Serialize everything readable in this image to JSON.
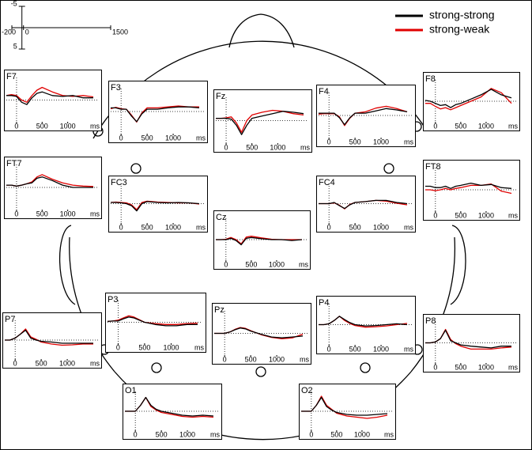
{
  "chart_data": {
    "type": "line",
    "scale": {
      "yticks": [
        -5,
        5
      ],
      "xticks": [
        -200,
        0,
        1500
      ]
    },
    "legend": [
      {
        "name": "strong-strong",
        "color": "#000000"
      },
      {
        "name": "strong-weak",
        "color": "#e00000"
      }
    ],
    "x": [
      -200,
      -100,
      0,
      100,
      200,
      300,
      400,
      500,
      700,
      900,
      1100,
      1300,
      1500
    ],
    "xlim": [
      -200,
      1500
    ],
    "ylim": [
      -5,
      5
    ],
    "y_reversed": true,
    "xticks": [
      0,
      500,
      1000
    ],
    "x_unit": "ms",
    "panels": [
      {
        "title": "F7",
        "series": [
          {
            "values": [
              -1,
              -1,
              -0.8,
              0.5,
              1,
              -0.5,
              -1.5,
              -1.8,
              -1,
              -0.8,
              -1,
              -0.5,
              -0.5
            ]
          },
          {
            "values": [
              -1,
              -1.2,
              -1,
              0,
              0.5,
              -1,
              -2.2,
              -2.8,
              -1.8,
              -1,
              -0.8,
              -1,
              -0.7
            ]
          }
        ]
      },
      {
        "title": "F3",
        "series": [
          {
            "values": [
              -0.8,
              -0.8,
              -0.5,
              -0.5,
              1,
              2.2,
              0.5,
              -0.5,
              -0.5,
              -0.8,
              -1,
              -1,
              -0.8
            ]
          },
          {
            "values": [
              -0.6,
              -0.9,
              -0.6,
              -0.5,
              0.8,
              2.3,
              0.3,
              -0.8,
              -0.8,
              -1,
              -1.2,
              -1,
              -1
            ]
          }
        ]
      },
      {
        "title": "Fz",
        "series": [
          {
            "values": [
              -0.5,
              -0.5,
              -0.5,
              -0.3,
              1,
              3,
              1,
              -0.5,
              -1,
              -1.5,
              -2,
              -1.8,
              -1.5
            ]
          },
          {
            "values": [
              -0.5,
              -0.5,
              -0.6,
              -0.8,
              0.5,
              2.5,
              0,
              -1.2,
              -1.8,
              -2.2,
              -2,
              -1.5,
              -1.2
            ]
          }
        ]
      },
      {
        "title": "F4",
        "series": [
          {
            "values": [
              -0.5,
              -0.5,
              -0.5,
              -0.5,
              0.5,
              2,
              0.5,
              -0.5,
              -0.5,
              -1,
              -1.5,
              -1.2,
              -0.8
            ]
          },
          {
            "values": [
              -0.3,
              -0.4,
              -0.4,
              -0.4,
              0.3,
              2.2,
              0.6,
              -0.5,
              -0.8,
              -1.6,
              -2,
              -1.5,
              -0.8
            ]
          }
        ]
      },
      {
        "title": "F8",
        "series": [
          {
            "values": [
              -0.2,
              0,
              0.5,
              1,
              0.8,
              1.5,
              0.8,
              0.5,
              -0.5,
              -1.5,
              -2.8,
              -1.5,
              -0.8
            ]
          },
          {
            "values": [
              0.5,
              0.5,
              1.2,
              1.8,
              1.5,
              2,
              1.5,
              1,
              0,
              -1,
              -3,
              -2,
              0.5
            ]
          }
        ]
      },
      {
        "title": "FT7",
        "series": [
          {
            "values": [
              -0.5,
              -0.5,
              -0.3,
              -0.5,
              -0.8,
              -1,
              -2,
              -2.3,
              -1.5,
              -0.5,
              0,
              0,
              0
            ]
          },
          {
            "values": [
              -0.5,
              -0.5,
              -0.3,
              -0.5,
              -0.8,
              -1.2,
              -2.3,
              -2.8,
              -1.8,
              -1,
              -0.5,
              -0.3,
              -0.2
            ]
          }
        ]
      },
      {
        "title": "FC3",
        "series": [
          {
            "values": [
              -0.3,
              -0.3,
              -0.2,
              0,
              0.5,
              1.8,
              0,
              -0.5,
              -0.3,
              -0.2,
              -0.3,
              -0.2,
              0
            ]
          },
          {
            "values": [
              -0.3,
              -0.4,
              -0.3,
              -0.2,
              0.3,
              1.5,
              -0.3,
              -0.6,
              -0.4,
              -0.3,
              -0.2,
              -0.2,
              0.1
            ]
          }
        ]
      },
      {
        "title": "Cz",
        "series": [
          {
            "values": [
              0,
              0,
              0,
              -0.3,
              0.2,
              1.2,
              -0.3,
              -0.5,
              -0.2,
              0,
              0,
              0.2,
              0
            ]
          },
          {
            "values": [
              0,
              0,
              -0.1,
              -0.5,
              0,
              1,
              -0.6,
              -0.8,
              -0.4,
              -0.1,
              0,
              0,
              0
            ]
          }
        ]
      },
      {
        "title": "FC4",
        "series": [
          {
            "values": [
              0,
              0,
              0,
              -0.3,
              0.5,
              1.2,
              0.3,
              -0.3,
              -0.5,
              -0.8,
              -0.8,
              -0.3,
              0
            ]
          },
          {
            "values": [
              0,
              0,
              0,
              -0.2,
              0.4,
              1.3,
              0.2,
              -0.3,
              -0.5,
              -0.8,
              -0.6,
              -0.1,
              0.3
            ]
          }
        ]
      },
      {
        "title": "FT8",
        "series": [
          {
            "values": [
              -0.8,
              -0.8,
              -0.5,
              -0.5,
              -0.8,
              -0.3,
              -0.8,
              -1,
              -1.5,
              -1,
              -1.2,
              -0.5,
              -0.3
            ]
          },
          {
            "values": [
              0,
              0,
              0.2,
              0,
              -0.3,
              0,
              -0.3,
              -0.5,
              -1,
              -1,
              -1.3,
              0.3,
              0.8
            ]
          }
        ]
      },
      {
        "title": "P3",
        "series": [
          {
            "values": [
              -0.2,
              -0.3,
              -0.3,
              -0.8,
              -1.2,
              -1,
              -0.5,
              0,
              0.5,
              0.8,
              0.8,
              0.5,
              0.5
            ]
          },
          {
            "values": [
              -0.2,
              -0.3,
              -0.5,
              -1,
              -1.5,
              -1.2,
              -0.6,
              0,
              0.3,
              0.5,
              0.5,
              0.3,
              0.2
            ]
          }
        ]
      },
      {
        "title": "Pz",
        "series": [
          {
            "values": [
              0,
              0,
              0,
              -0.3,
              -0.8,
              -1.2,
              -1,
              -0.5,
              0.2,
              0.8,
              1,
              0.8,
              0.6
            ]
          },
          {
            "values": [
              0,
              0,
              0,
              -0.3,
              -0.9,
              -1.3,
              -1.1,
              -0.6,
              0.3,
              0.9,
              1.2,
              1,
              0.2
            ]
          }
        ]
      },
      {
        "title": "P4",
        "series": [
          {
            "values": [
              0,
              0,
              -0.2,
              -1,
              -2,
              -1.2,
              -0.5,
              0,
              0.3,
              0.2,
              0,
              -0.2,
              0
            ]
          },
          {
            "values": [
              0,
              0,
              -0.2,
              -1,
              -2,
              -1,
              -0.3,
              0.2,
              0.6,
              0.5,
              0.3,
              0,
              -0.3
            ]
          }
        ]
      },
      {
        "title": "P7",
        "series": [
          {
            "values": [
              0,
              0,
              -0.5,
              -1.5,
              -2.5,
              -0.5,
              0,
              0.3,
              0.5,
              0.8,
              0.8,
              0.8,
              0.8
            ]
          },
          {
            "values": [
              0,
              0,
              -0.5,
              -1.5,
              -2.8,
              -0.8,
              -0.2,
              0.5,
              1,
              1.3,
              1.2,
              1,
              1
            ]
          }
        ]
      },
      {
        "title": "P8",
        "series": [
          {
            "values": [
              0,
              0,
              -0.2,
              -1,
              -3,
              -0.5,
              0,
              0.5,
              0.8,
              1,
              1.2,
              0.8,
              0.8
            ]
          },
          {
            "values": [
              0,
              0,
              -0.2,
              -1,
              -3.2,
              -0.8,
              0.2,
              0.8,
              1.5,
              1.5,
              1.5,
              1.2,
              1
            ]
          }
        ]
      },
      {
        "title": "O1",
        "series": [
          {
            "values": [
              0,
              0,
              0,
              -1.5,
              -3.5,
              -1.5,
              -0.5,
              0,
              0.5,
              1,
              1.2,
              1,
              1.2
            ]
          },
          {
            "values": [
              0,
              0,
              0,
              -1.5,
              -3.5,
              -1.2,
              -0.3,
              0.3,
              0.8,
              1.3,
              1.5,
              1.3,
              1.5
            ]
          }
        ]
      },
      {
        "title": "O2",
        "series": [
          {
            "values": [
              0,
              0,
              0,
              -1.5,
              -3.5,
              -1.2,
              -0.3,
              0.3,
              0.8,
              1,
              1,
              0.8,
              0.6
            ]
          },
          {
            "values": [
              0,
              0,
              0,
              -1.5,
              -3.8,
              -1.5,
              -0.5,
              0.5,
              1.2,
              1.5,
              1.8,
              1.5,
              1
            ]
          }
        ]
      }
    ]
  }
}
